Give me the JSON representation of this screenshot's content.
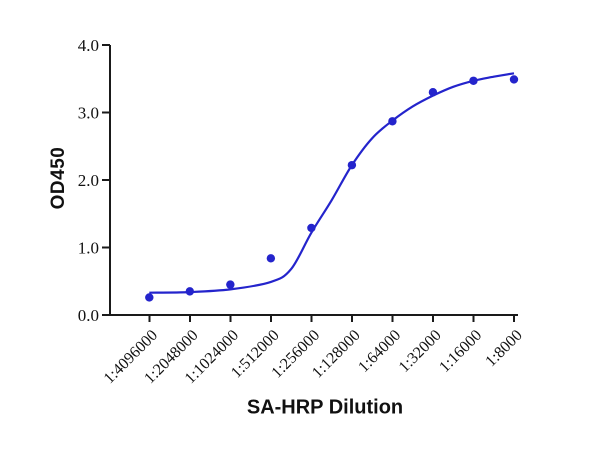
{
  "chart_data": {
    "type": "scatter",
    "title": "",
    "xlabel": "SA-HRP Dilution",
    "ylabel": "OD450",
    "categories": [
      "1:4096000",
      "1:2048000",
      "1:1024000",
      "1:512000",
      "1:256000",
      "1:128000",
      "1:64000",
      "1:32000",
      "1:16000",
      "1:8000"
    ],
    "values": [
      0.26,
      0.35,
      0.45,
      0.84,
      1.29,
      2.22,
      2.87,
      3.3,
      3.47,
      3.49
    ],
    "y_ticks": [
      "0.0",
      "1.0",
      "2.0",
      "3.0",
      "4.0"
    ],
    "ylim": [
      0,
      4
    ],
    "grid": false,
    "legend": "none",
    "fit_curve": {
      "x": [
        0,
        1,
        2,
        3,
        3.5,
        4,
        4.5,
        5,
        5.5,
        6,
        6.5,
        7,
        7.5,
        8,
        8.5,
        9
      ],
      "y": [
        0.33,
        0.34,
        0.38,
        0.49,
        0.68,
        1.22,
        1.7,
        2.22,
        2.62,
        2.88,
        3.09,
        3.25,
        3.38,
        3.47,
        3.53,
        3.58
      ]
    },
    "marker_color": "#2424cc",
    "line_color": "#2424cc",
    "axis_color": "#1a1a1a",
    "background_color": "#ffffff"
  }
}
